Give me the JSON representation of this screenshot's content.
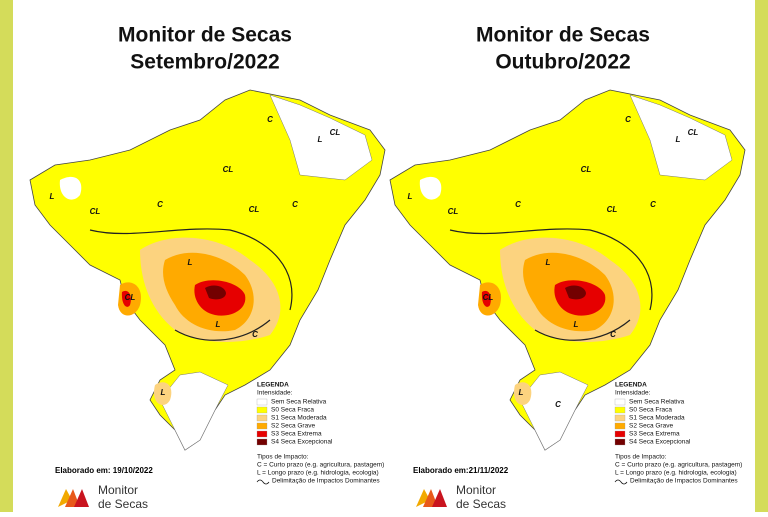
{
  "panels": [
    {
      "title": [
        "Monitor de Secas",
        "Setembro/2022"
      ],
      "elaborado": "Elaborado em: 19/10/2022",
      "region_labels": [
        "C",
        "CL",
        "CL",
        "L",
        "CL",
        "C",
        "CL",
        "L",
        "C",
        "L",
        "CL",
        "L",
        "C",
        "L"
      ]
    },
    {
      "title": [
        "Monitor de Secas",
        "Outubro/2022"
      ],
      "elaborado": "Elaborado em:21/11/2022",
      "region_labels": [
        "C",
        "CL",
        "CL",
        "L",
        "CL",
        "C",
        "CL",
        "L",
        "C",
        "L",
        "CL",
        "L",
        "C",
        "L",
        "C"
      ]
    }
  ],
  "legend": {
    "title": "LEGENDA",
    "intensity_title": "Intensidade:",
    "items": [
      {
        "label": "Sem Seca Relativa",
        "color": "#ffffff"
      },
      {
        "label": "S0 Seca Fraca",
        "color": "#ffff00"
      },
      {
        "label": "S1 Seca Moderada",
        "color": "#fcd37f"
      },
      {
        "label": "S2 Seca Grave",
        "color": "#ffaa00"
      },
      {
        "label": "S3 Seca Extrema",
        "color": "#e60000"
      },
      {
        "label": "S4 Seca Excepcional",
        "color": "#730000"
      }
    ],
    "impact_title": "Tipos de Impacto:",
    "impact_items": [
      "C = Curto prazo (e.g. agricultura, pastagem)",
      "L = Longo prazo (e.g. hidrologia, ecologia)"
    ],
    "boundary": "Delimitação de Impactos Dominantes"
  },
  "logo": [
    "Monitor",
    "de Secas"
  ]
}
